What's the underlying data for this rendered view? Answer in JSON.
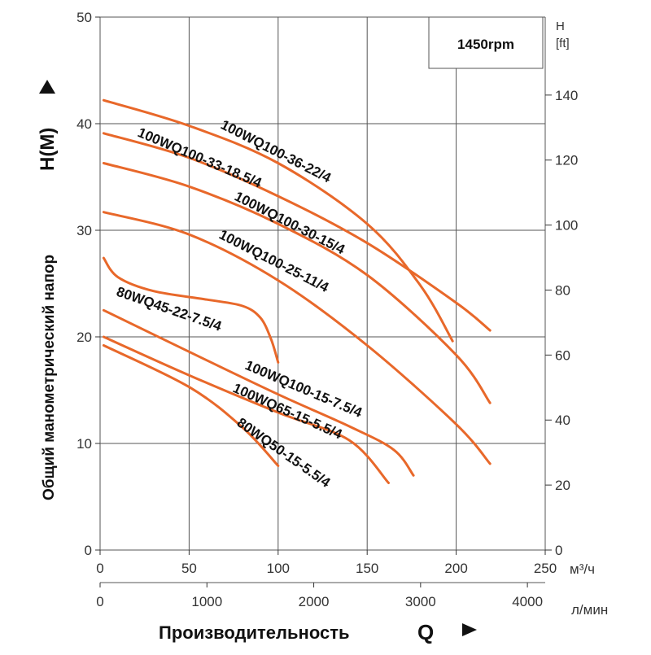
{
  "chart_data": {
    "type": "line",
    "speed_label": "1450rpm",
    "xlabel": "Производительность",
    "xlabel_symbol": "Q",
    "ylabel": "Общий манометрический напор",
    "ylabel_symbol": "H(M)",
    "x_unit": "м³/ч",
    "x2_unit": "л/мин",
    "y2_unit_top": "H",
    "y2_unit_bottom": "[ft]",
    "xlim": [
      0,
      250
    ],
    "ylim": [
      0,
      50
    ],
    "x2lim": [
      0,
      4166.67
    ],
    "y2lim": [
      0,
      164
    ],
    "xticks": [
      0,
      50,
      100,
      150,
      200,
      250
    ],
    "x2ticks": [
      0,
      1000,
      2000,
      3000,
      4000
    ],
    "yticks": [
      0,
      10,
      20,
      30,
      40,
      50
    ],
    "y2ticks": [
      0,
      20,
      40,
      60,
      80,
      100,
      120,
      140
    ],
    "grid": true,
    "line_color": "#e8682a",
    "series": [
      {
        "name": "100WQ100-36-22/4",
        "points": [
          [
            2,
            42.2
          ],
          [
            50,
            39.8
          ],
          [
            100,
            36.3
          ],
          [
            150,
            30.6
          ],
          [
            180,
            24.8
          ],
          [
            198,
            19.6
          ]
        ]
      },
      {
        "name": "100WQ100-33-18.5/4",
        "points": [
          [
            2,
            39.1
          ],
          [
            50,
            36.8
          ],
          [
            100,
            33.2
          ],
          [
            150,
            28.8
          ],
          [
            200,
            23.2
          ],
          [
            219,
            20.6
          ]
        ]
      },
      {
        "name": "100WQ100-30-15/4",
        "points": [
          [
            2,
            36.3
          ],
          [
            50,
            34.1
          ],
          [
            100,
            30.6
          ],
          [
            150,
            25.8
          ],
          [
            200,
            18.3
          ],
          [
            219,
            13.8
          ]
        ]
      },
      {
        "name": "100WQ100-25-11/4",
        "points": [
          [
            2,
            31.7
          ],
          [
            50,
            29.6
          ],
          [
            100,
            25.3
          ],
          [
            150,
            19.2
          ],
          [
            200,
            11.8
          ],
          [
            219,
            8.1
          ]
        ]
      },
      {
        "name": "80WQ45-22-7.5/4",
        "points": [
          [
            2,
            27.4
          ],
          [
            10,
            25.6
          ],
          [
            30,
            24.3
          ],
          [
            60,
            23.5
          ],
          [
            80,
            22.9
          ],
          [
            90,
            21.8
          ],
          [
            96,
            19.8
          ],
          [
            100,
            17.6
          ]
        ]
      },
      {
        "name": "100WQ100-15-7.5/4",
        "points": [
          [
            2,
            22.5
          ],
          [
            50,
            18.6
          ],
          [
            100,
            14.6
          ],
          [
            140,
            11.6
          ],
          [
            165,
            9.4
          ],
          [
            176,
            7.0
          ]
        ]
      },
      {
        "name": "100WQ65-15-5.5/4",
        "points": [
          [
            2,
            20.0
          ],
          [
            50,
            16.4
          ],
          [
            100,
            12.9
          ],
          [
            140,
            10.3
          ],
          [
            162,
            6.3
          ]
        ]
      },
      {
        "name": "80WQ50-15-5.5/4",
        "points": [
          [
            2,
            19.2
          ],
          [
            50,
            15.3
          ],
          [
            80,
            11.5
          ],
          [
            100,
            7.9
          ]
        ]
      }
    ]
  }
}
